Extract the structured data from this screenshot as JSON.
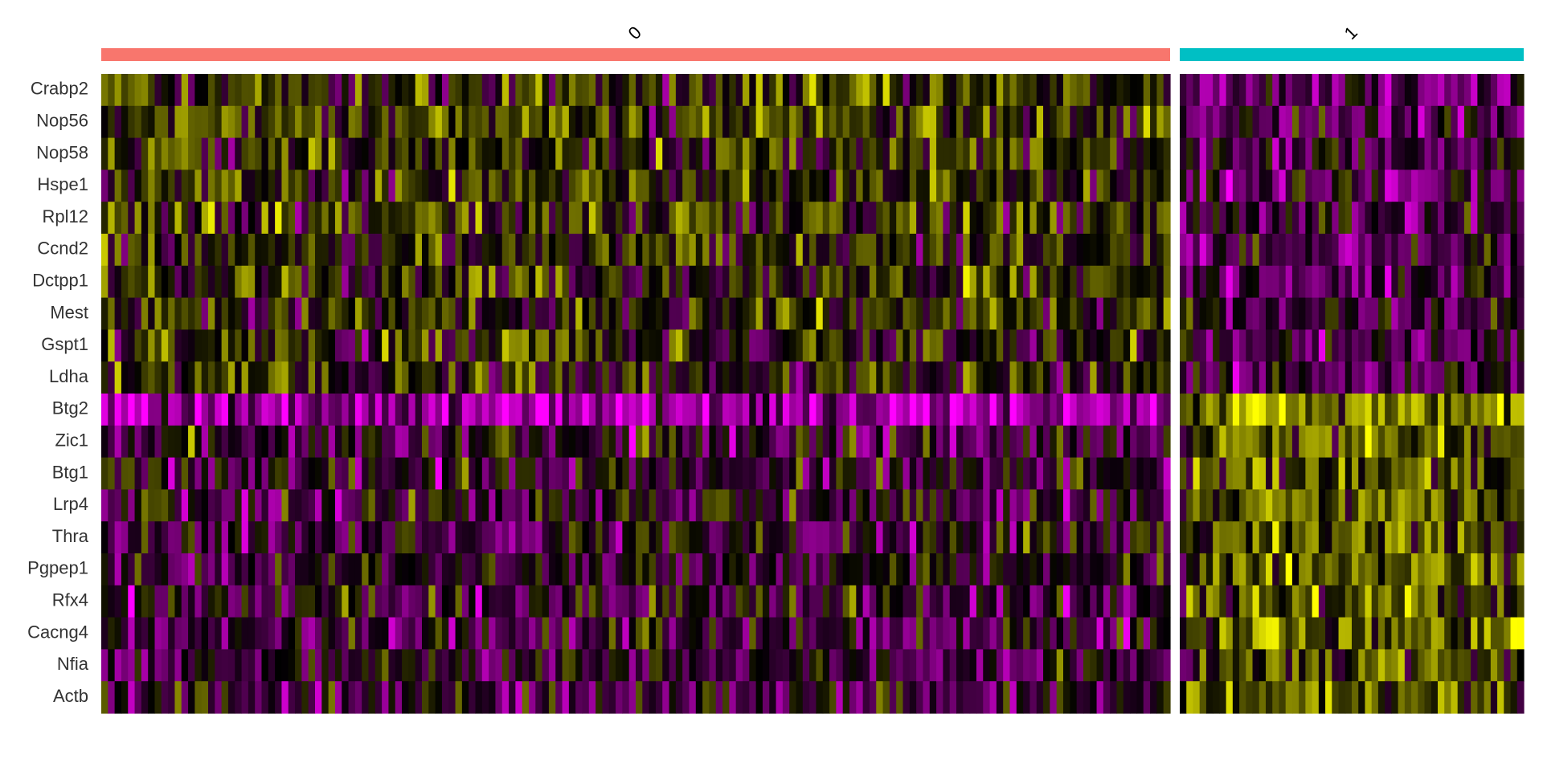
{
  "chart_data": {
    "type": "heatmap",
    "title": "",
    "xlabel": "",
    "ylabel": "",
    "legend": "none",
    "grid": false,
    "color_scale": {
      "low": "#FF00FF",
      "mid": "#000000",
      "high": "#FFFF00",
      "range": [
        -2.5,
        2.5
      ]
    },
    "genes": [
      "Crabp2",
      "Nop56",
      "Nop58",
      "Hspe1",
      "Rpl12",
      "Ccnd2",
      "Dctpp1",
      "Mest",
      "Gspt1",
      "Ldha",
      "Btg2",
      "Zic1",
      "Btg1",
      "Lrp4",
      "Thra",
      "Pgpep1",
      "Rfx4",
      "Cacng4",
      "Nfia",
      "Actb"
    ],
    "clusters": [
      {
        "name": "0",
        "color": "#F8766D",
        "n_cells": 160,
        "mean_scaled_expression": [
          0.45,
          0.35,
          0.35,
          0.3,
          0.35,
          0.3,
          0.3,
          0.3,
          0.25,
          0.25,
          -1.5,
          -0.3,
          -0.25,
          -0.35,
          -0.3,
          -0.3,
          -0.3,
          -0.35,
          -0.35,
          -0.3
        ]
      },
      {
        "name": "1",
        "color": "#00BFC4",
        "n_cells": 52,
        "mean_scaled_expression": [
          -0.8,
          -0.6,
          -0.6,
          -0.7,
          -0.6,
          -0.6,
          -0.6,
          -0.5,
          -0.5,
          -0.6,
          1.3,
          0.9,
          0.9,
          0.9,
          0.8,
          0.8,
          0.7,
          0.8,
          0.8,
          0.8
        ]
      }
    ]
  }
}
